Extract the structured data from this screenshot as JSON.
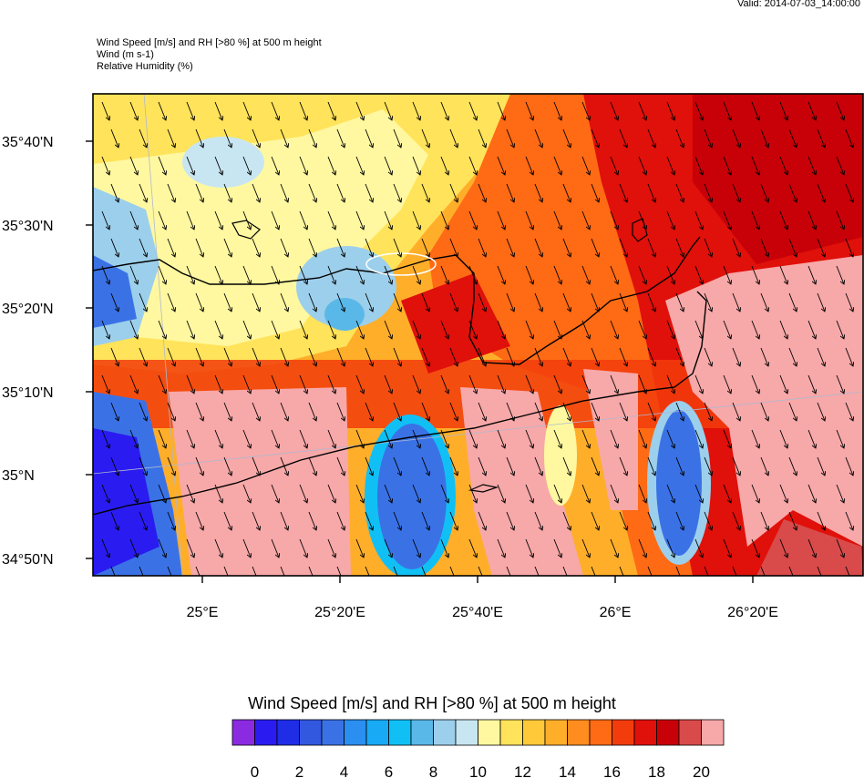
{
  "valid_time": "Valid: 2014-07-03_14:00:00",
  "header": {
    "line1": "Wind Speed [m/s] and RH [>80 %] at 500 m height",
    "line2": "Wind   (m s-1)",
    "line3": "Relative Humidity   (%)"
  },
  "map": {
    "lat_labels": [
      "35°40'N",
      "35°30'N",
      "35°20'N",
      "35°10'N",
      "35°N",
      "34°50'N"
    ],
    "lon_labels": [
      "25°E",
      "25°20'E",
      "25°40'E",
      "26°E",
      "26°20'E"
    ],
    "wind_direction": "from north-north-west (arrows pointing south-south-east)",
    "overlay": "relative humidity > 80 % shaded pink"
  },
  "colorbar": {
    "title": "Wind Speed [m/s] and RH [>80 %] at 500 m height",
    "tick_labels": [
      "0",
      "2",
      "4",
      "6",
      "8",
      "10",
      "12",
      "14",
      "16",
      "18",
      "20"
    ],
    "colors": [
      "#8a2be2",
      "#2a1cf0",
      "#1f2ee6",
      "#3358e0",
      "#3a72e6",
      "#2a8ff0",
      "#18aaf5",
      "#10c0f5",
      "#5ab8e8",
      "#9ccfeb",
      "#c8e6f2",
      "#fff8a0",
      "#ffe35a",
      "#ffc93a",
      "#ffae2a",
      "#ff8c1e",
      "#ff6a14",
      "#f23c0c",
      "#e0100a",
      "#c80008",
      "#d94a4a",
      "#f7a8a8"
    ]
  }
}
